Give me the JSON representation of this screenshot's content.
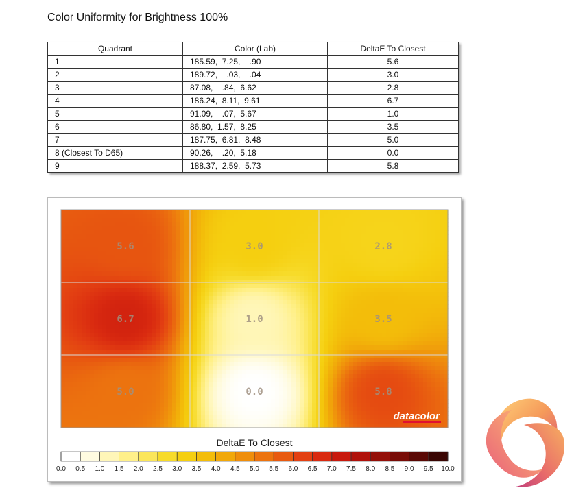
{
  "page": {
    "title": "Color Uniformity for Brightness 100%"
  },
  "table": {
    "headers": [
      "Quadrant",
      "Color (Lab)",
      "DeltaE To Closest"
    ],
    "rows": [
      [
        "1",
        "185.59,  7.25,    .90",
        "5.6"
      ],
      [
        "2",
        "189.72,    .03,    .04",
        "3.0"
      ],
      [
        "3",
        "87.08,    .84,  6.62",
        "2.8"
      ],
      [
        "4",
        "186.24,  8.11,  9.61",
        "6.7"
      ],
      [
        "5",
        "91.09,    .07,  5.67",
        "1.0"
      ],
      [
        "6",
        "86.80,  1.57,  8.25",
        "3.5"
      ],
      [
        "7",
        "187.75,  6.81,  8.48",
        "5.0"
      ],
      [
        "8 (Closest To D65)",
        "90.26,    .20,  5.18",
        "0.0"
      ],
      [
        "9",
        "188.37,  2.59,  5.73",
        "5.8"
      ]
    ]
  },
  "chart_data": {
    "type": "heatmap",
    "title": "",
    "xlabel": "",
    "ylabel": "",
    "grid": {
      "rows": 3,
      "cols": 3
    },
    "cell_values": [
      [
        5.6,
        3.0,
        2.8
      ],
      [
        6.7,
        1.0,
        3.5
      ],
      [
        5.0,
        0.0,
        5.8
      ]
    ],
    "cell_labels": [
      [
        "5.6",
        "3.0",
        "2.8"
      ],
      [
        "6.7",
        "1.0",
        "3.5"
      ],
      [
        "5.0",
        "0.0",
        "5.8"
      ]
    ],
    "colorbar": {
      "title": "DeltaE To Closest",
      "range": [
        0,
        10
      ],
      "ticks": [
        "0.0",
        "0.5",
        "1.0",
        "1.5",
        "2.0",
        "2.5",
        "3.0",
        "3.5",
        "4.0",
        "4.5",
        "5.0",
        "5.5",
        "6.0",
        "6.5",
        "7.0",
        "7.5",
        "8.0",
        "8.5",
        "9.0",
        "9.5",
        "10.0"
      ],
      "colors": [
        "#ffffff",
        "#fffbe0",
        "#fff6b8",
        "#fff08a",
        "#fbe65a",
        "#f7db2a",
        "#f5cf10",
        "#f3bd0a",
        "#f1a80a",
        "#ef8e0c",
        "#ec730f",
        "#e85a10",
        "#e34012",
        "#d92a10",
        "#c8190d",
        "#b0120b",
        "#941009",
        "#780c07",
        "#5a0905",
        "#3a0603",
        "#000000"
      ]
    },
    "watermark": "datacolor",
    "palette": {
      "low": "#ffffff",
      "mid": "#f5d000",
      "high": "#e02a08",
      "max": "#000000"
    }
  }
}
